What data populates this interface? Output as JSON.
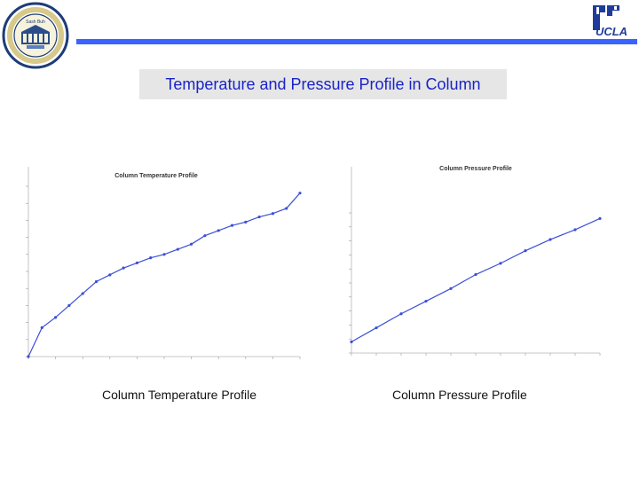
{
  "slide": {
    "title": "Temperature and Pressure Profile in Column",
    "captions": {
      "left": "Column Temperature Profile",
      "right": "Column Pressure Profile"
    },
    "colors": {
      "header_rule": "#3a64ff",
      "title_text": "#1a23c8",
      "title_box": "#e6e6e6",
      "plot_line": "#3b4fd8"
    }
  },
  "logos": {
    "left": {
      "icon": "university-seal-icon",
      "text": "Sash Buh"
    },
    "right": {
      "icon": "ucla-logo-icon",
      "text": "UCLA"
    }
  },
  "chart_data": [
    {
      "type": "line",
      "title": "Column Temperature Profile",
      "x": [
        0,
        5,
        10,
        15,
        20,
        25,
        30,
        35,
        40,
        45,
        50,
        55,
        60,
        65,
        70,
        75,
        80,
        85,
        90,
        95,
        100
      ],
      "series": [
        {
          "values": [
            0.0,
            0.17,
            0.23,
            0.3,
            0.37,
            0.44,
            0.48,
            0.52,
            0.55,
            0.58,
            0.6,
            0.63,
            0.66,
            0.71,
            0.74,
            0.77,
            0.79,
            0.82,
            0.84,
            0.87,
            0.96
          ]
        }
      ],
      "ylim": [
        0,
        1
      ],
      "grid": false
    },
    {
      "type": "line",
      "title": "Column Pressure Profile",
      "x": [
        0,
        10,
        20,
        30,
        40,
        50,
        60,
        70,
        80,
        90,
        100
      ],
      "series": [
        {
          "values": [
            0.08,
            0.18,
            0.28,
            0.37,
            0.46,
            0.56,
            0.64,
            0.73,
            0.81,
            0.88,
            0.96
          ]
        }
      ],
      "ylim": [
        0,
        1
      ],
      "grid": false
    }
  ]
}
